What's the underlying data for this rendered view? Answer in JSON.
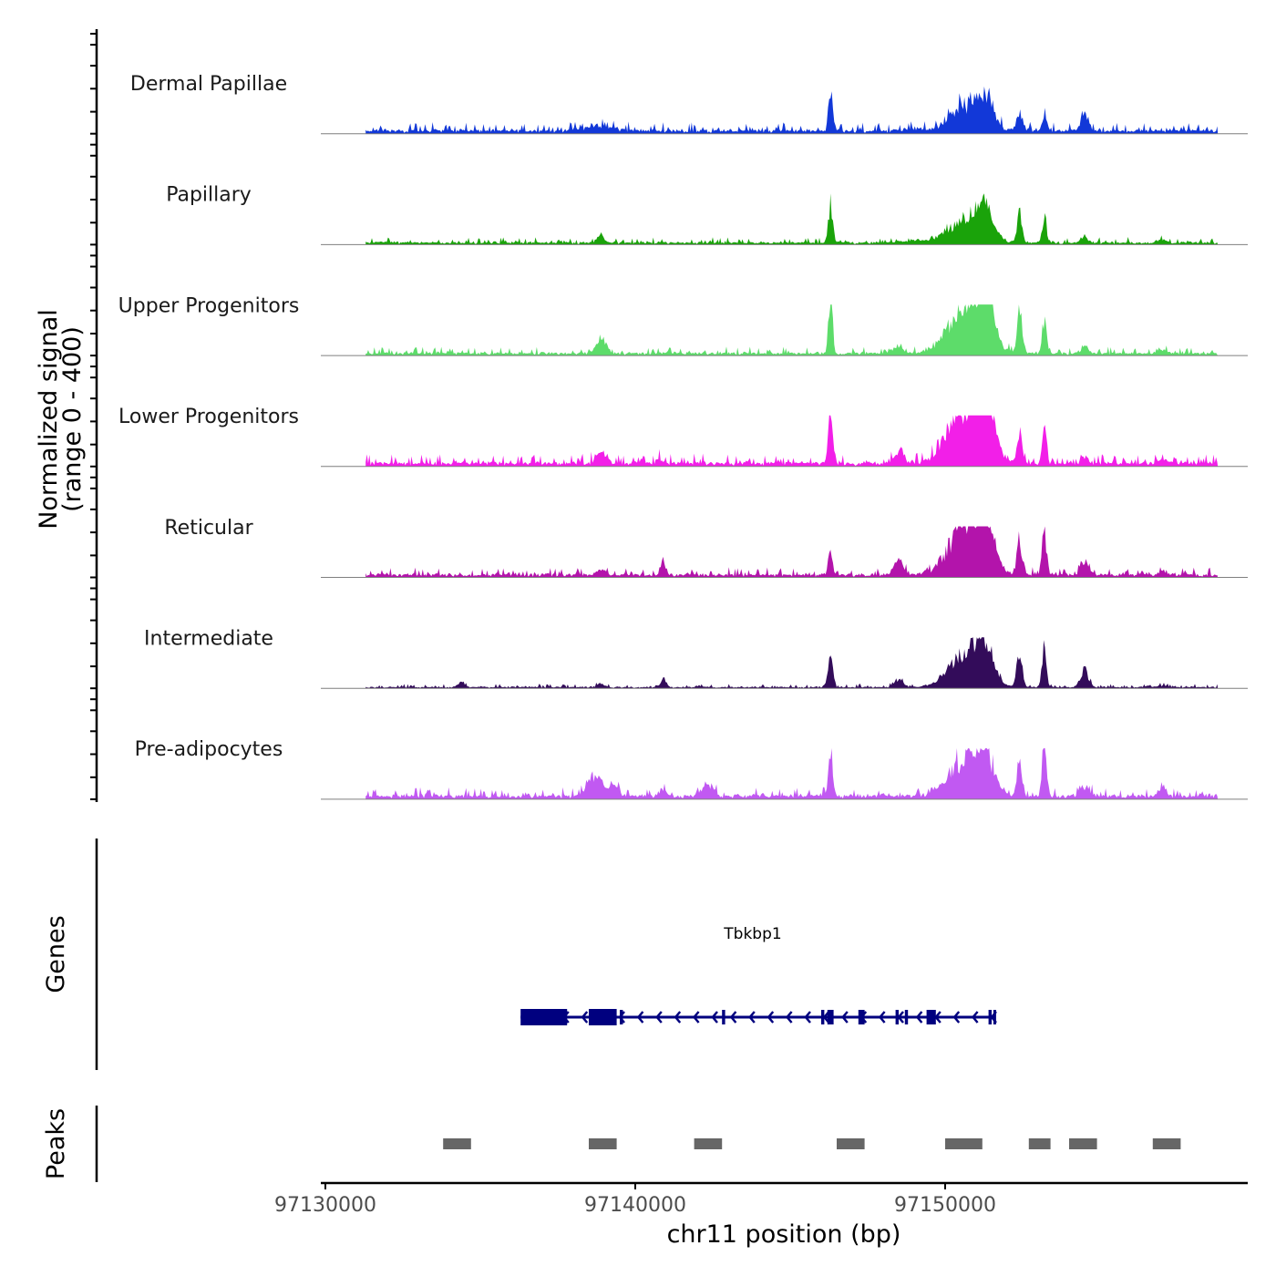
{
  "chart_data": {
    "type": "area",
    "y_axis_title_line1": "Normalized signal",
    "y_axis_title_line2": "(range 0 - 400)",
    "ylim": [
      0,
      400
    ],
    "x_axis_title": "chr11 position (bp)",
    "xlim": [
      97130000,
      97160000
    ],
    "x_ticks": [
      {
        "value": 97130000,
        "label": "97130000"
      },
      {
        "value": 97140000,
        "label": "97140000"
      },
      {
        "value": 97150000,
        "label": "97150000"
      }
    ],
    "signal_start": 97131300,
    "signal_end": 97158800,
    "tracks": [
      {
        "name": "Dermal Papillae",
        "color": "#1238d8",
        "base": 8,
        "noise": 4,
        "peaks": [
          [
            97138800,
            500,
            12
          ],
          [
            97146300,
            70,
            95
          ],
          [
            97149000,
            300,
            6
          ],
          [
            97150700,
            500,
            70
          ],
          [
            97151300,
            250,
            68
          ],
          [
            97152400,
            80,
            52
          ],
          [
            97153200,
            70,
            50
          ],
          [
            97154500,
            120,
            48
          ]
        ]
      },
      {
        "name": "Papillary",
        "color": "#1aa30a",
        "base": 5,
        "noise": 3,
        "peaks": [
          [
            97138900,
            120,
            18
          ],
          [
            97146300,
            70,
            110
          ],
          [
            97149000,
            300,
            6
          ],
          [
            97150700,
            550,
            70
          ],
          [
            97151300,
            250,
            65
          ],
          [
            97152400,
            80,
            75
          ],
          [
            97153200,
            70,
            62
          ],
          [
            97154500,
            120,
            15
          ],
          [
            97157000,
            150,
            8
          ]
        ]
      },
      {
        "name": "Upper Progenitors",
        "color": "#5ddc6a",
        "base": 6,
        "noise": 3,
        "peaks": [
          [
            97138900,
            150,
            42
          ],
          [
            97146300,
            60,
            170
          ],
          [
            97148500,
            200,
            15
          ],
          [
            97150700,
            550,
            130
          ],
          [
            97151300,
            250,
            120
          ],
          [
            97152400,
            80,
            110
          ],
          [
            97153200,
            70,
            90
          ],
          [
            97154500,
            120,
            20
          ],
          [
            97157000,
            150,
            10
          ]
        ]
      },
      {
        "name": "Lower Progenitors",
        "color": "#f21fe8",
        "base": 9,
        "noise": 4,
        "peaks": [
          [
            97138900,
            150,
            35
          ],
          [
            97140800,
            80,
            15
          ],
          [
            97146300,
            70,
            150
          ],
          [
            97148500,
            150,
            32
          ],
          [
            97150700,
            550,
            160
          ],
          [
            97151300,
            250,
            145
          ],
          [
            97152400,
            80,
            98
          ],
          [
            97153200,
            70,
            96
          ],
          [
            97154500,
            120,
            18
          ],
          [
            97157000,
            150,
            8
          ]
        ]
      },
      {
        "name": "Reticular",
        "color": "#b314ab",
        "base": 7,
        "noise": 3,
        "peaks": [
          [
            97138900,
            150,
            14
          ],
          [
            97140900,
            80,
            40
          ],
          [
            97146300,
            70,
            65
          ],
          [
            97148500,
            150,
            40
          ],
          [
            97150700,
            550,
            135
          ],
          [
            97151300,
            250,
            112
          ],
          [
            97152400,
            80,
            100
          ],
          [
            97153200,
            70,
            124
          ],
          [
            97154500,
            120,
            40
          ],
          [
            97157000,
            150,
            8
          ]
        ]
      },
      {
        "name": "Intermediate",
        "color": "#330c5a",
        "base": 3,
        "noise": 2,
        "peaks": [
          [
            97134400,
            100,
            14
          ],
          [
            97138900,
            100,
            12
          ],
          [
            97140900,
            80,
            22
          ],
          [
            97146300,
            70,
            85
          ],
          [
            97148500,
            150,
            20
          ],
          [
            97150700,
            550,
            90
          ],
          [
            97151300,
            250,
            80
          ],
          [
            97152400,
            80,
            110
          ],
          [
            97153200,
            70,
            110
          ],
          [
            97154500,
            120,
            50
          ],
          [
            97157000,
            150,
            5
          ]
        ]
      },
      {
        "name": "Pre-adipocytes",
        "color": "#c159f2",
        "base": 8,
        "noise": 5,
        "peaks": [
          [
            97138700,
            250,
            52
          ],
          [
            97139300,
            150,
            28
          ],
          [
            97142300,
            200,
            25
          ],
          [
            97140900,
            100,
            15
          ],
          [
            97146300,
            70,
            125
          ],
          [
            97150700,
            550,
            100
          ],
          [
            97151300,
            250,
            80
          ],
          [
            97152400,
            80,
            110
          ],
          [
            97153200,
            70,
            145
          ],
          [
            97154500,
            150,
            20
          ],
          [
            97157000,
            150,
            20
          ]
        ]
      }
    ],
    "genes_axis_title": "Genes",
    "gene": {
      "name": "Tbkbp1",
      "color": "#00007f",
      "strand": "-",
      "start": 97136300,
      "end": 97151600,
      "exons": [
        [
          97136300,
          97137800
        ],
        [
          97138500,
          97139400
        ],
        [
          97139500,
          97139600
        ],
        [
          97142800,
          97142900
        ],
        [
          97146000,
          97146100
        ],
        [
          97146200,
          97146400
        ],
        [
          97147200,
          97147400
        ],
        [
          97148400,
          97148500
        ],
        [
          97148700,
          97148800
        ],
        [
          97149400,
          97149700
        ],
        [
          97151400,
          97151500
        ]
      ]
    },
    "peaks_axis_title": "Peaks",
    "peaks_color": "#666666",
    "peaks": [
      [
        97133800,
        97134700
      ],
      [
        97138500,
        97139400
      ],
      [
        97141900,
        97142800
      ],
      [
        97146500,
        97147400
      ],
      [
        97150000,
        97151200
      ],
      [
        97152700,
        97153400
      ],
      [
        97154000,
        97154900
      ],
      [
        97156700,
        97157600
      ]
    ]
  }
}
